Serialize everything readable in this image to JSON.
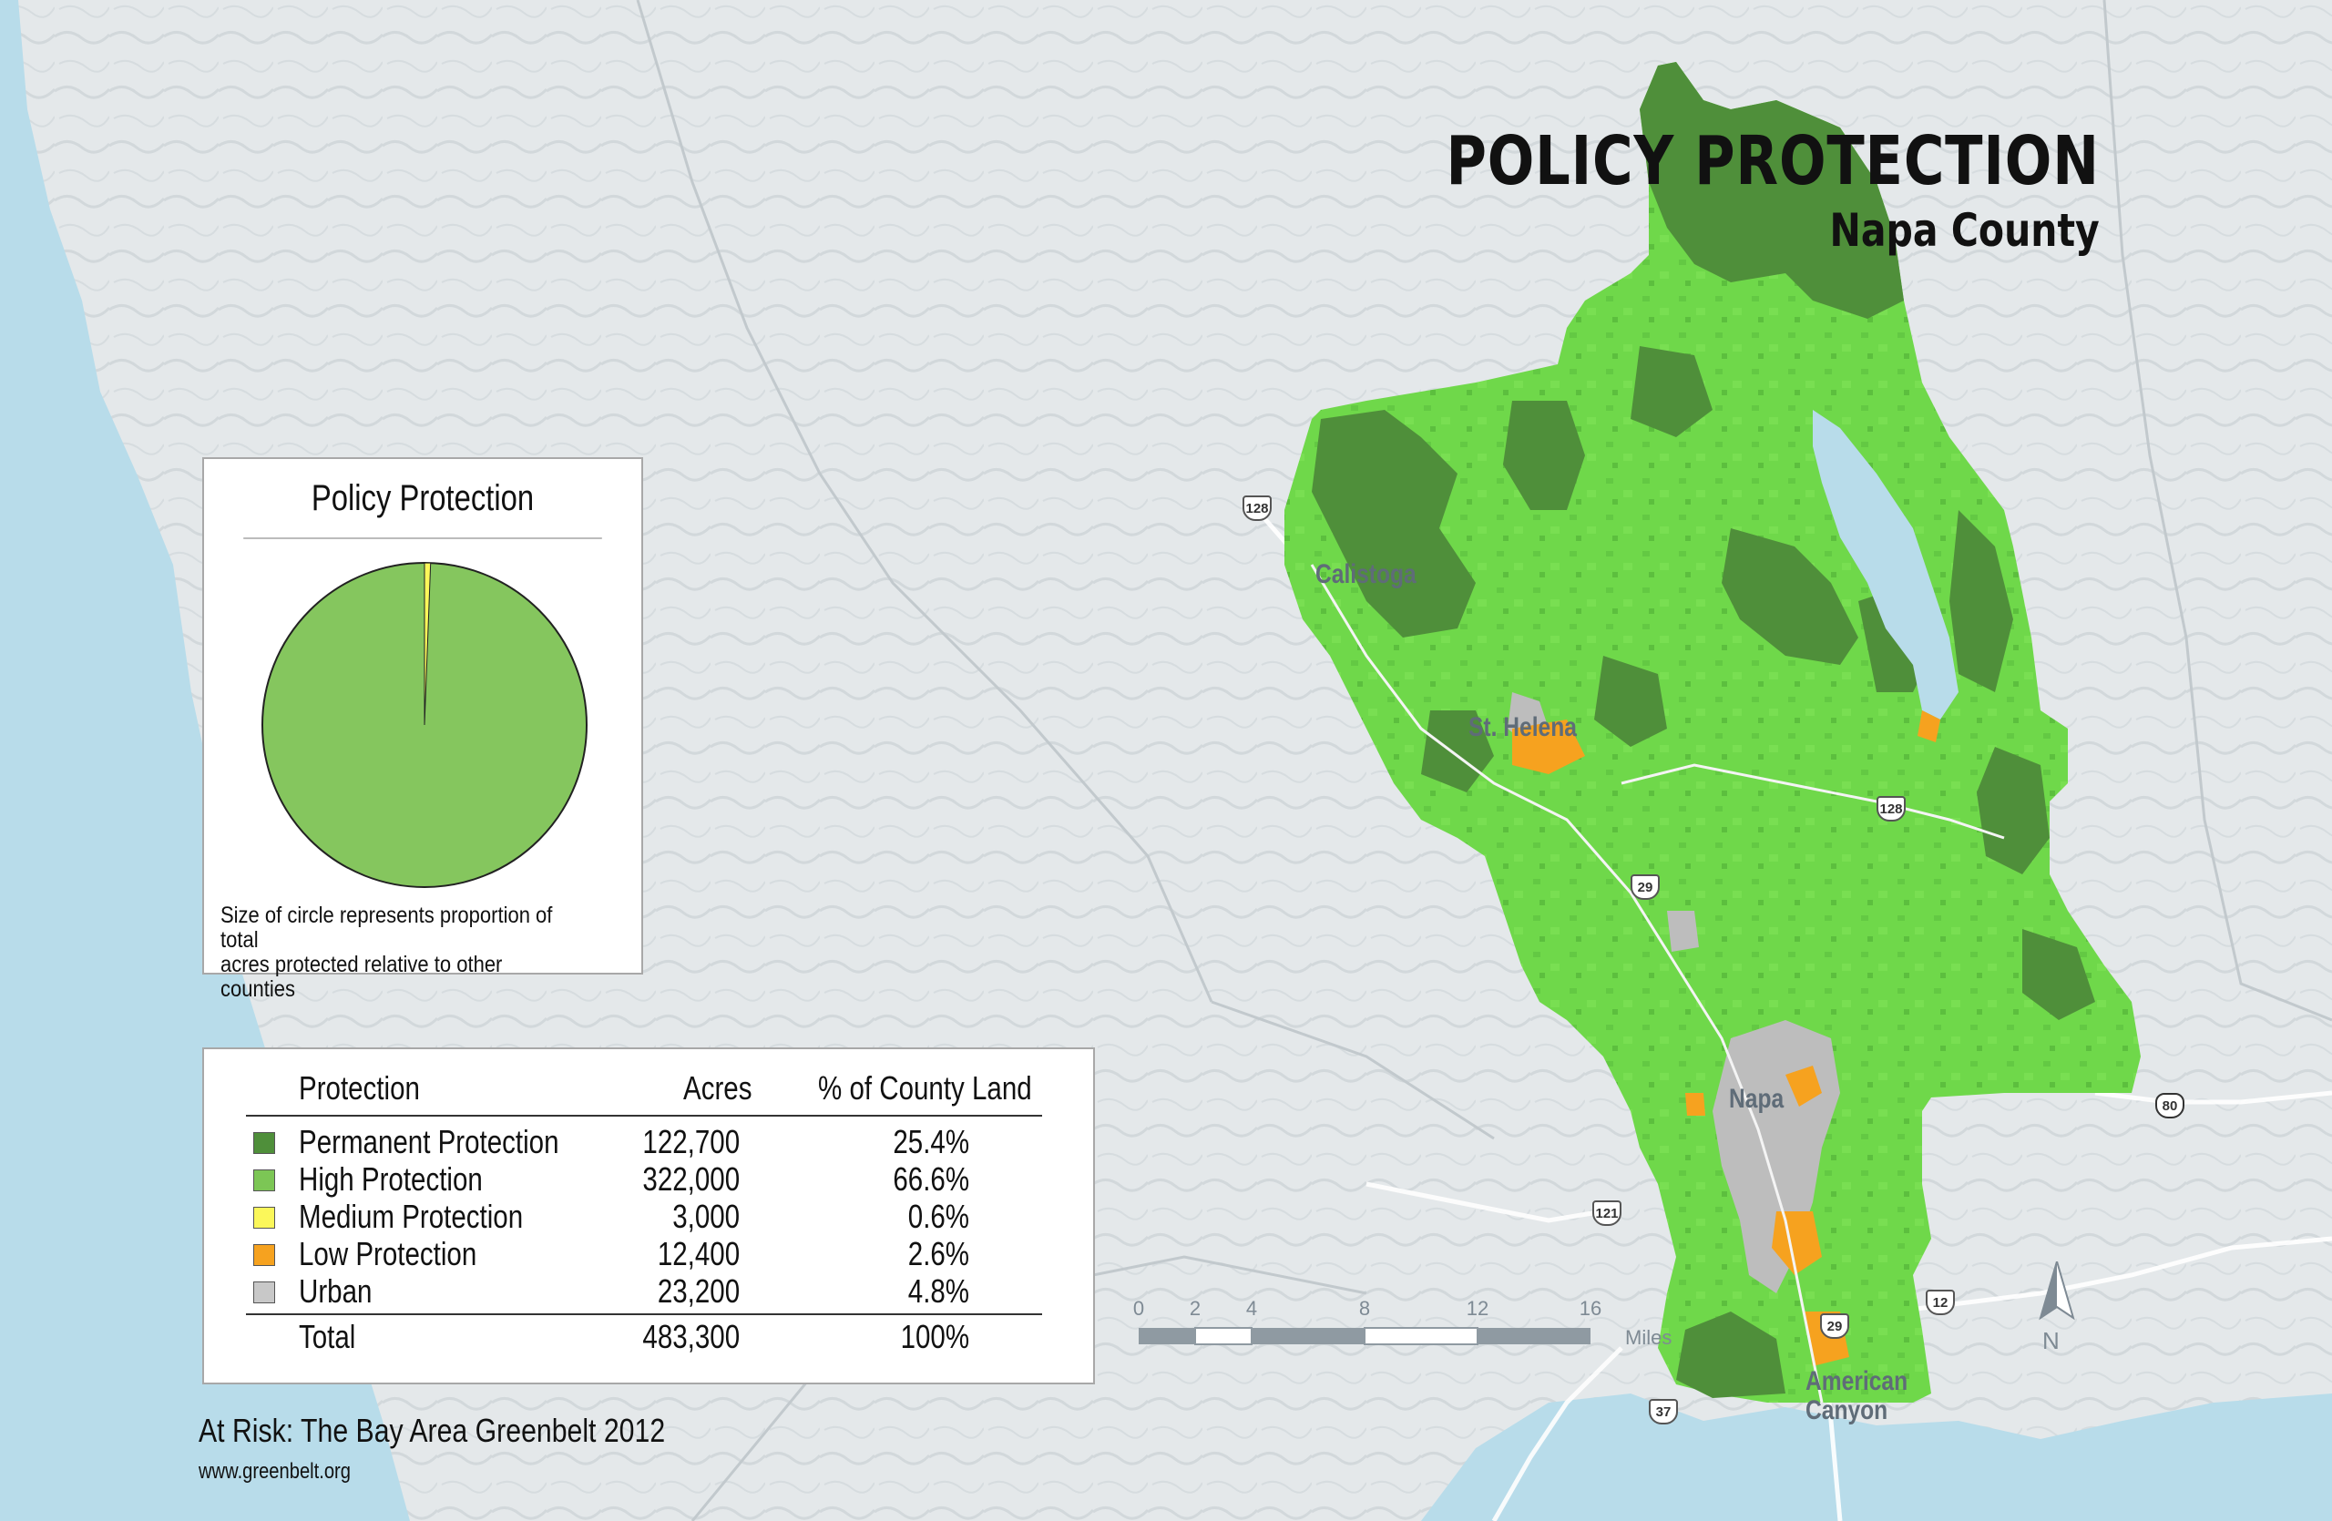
{
  "title": "POLICY PROTECTION",
  "subtitle": "Napa County",
  "colors": {
    "water": "#b8dcea",
    "land": "#e2e6e8",
    "permanent": "#4f8f3a",
    "high": "#6fd84a",
    "medium": "#fbf75a",
    "low": "#f6a21f",
    "urban": "#bdbdbd",
    "pie_high": "#85c65e"
  },
  "pie": {
    "title": "Policy Protection",
    "note_line1": "Size of circle represents proportion of total",
    "note_line2": "acres protected relative to other counties",
    "medium_fraction": 0.006
  },
  "legend": {
    "headers": {
      "protection": "Protection",
      "acres": "Acres",
      "pct": "% of County Land"
    },
    "rows": [
      {
        "label": "Permanent Protection",
        "acres": "122,700",
        "pct": "25.4%",
        "color": "#4f8f3a"
      },
      {
        "label": "High Protection",
        "acres": "322,000",
        "pct": "66.6%",
        "color": "#7cc655"
      },
      {
        "label": "Medium Protection",
        "acres": "3,000",
        "pct": "0.6%",
        "color": "#fbf75a"
      },
      {
        "label": "Low Protection",
        "acres": "12,400",
        "pct": "2.6%",
        "color": "#f6a21f"
      },
      {
        "label": "Urban",
        "acres": "23,200",
        "pct": "4.8%",
        "color": "#c8c8c8"
      }
    ],
    "total": {
      "label": "Total",
      "acres": "483,300",
      "pct": "100%"
    }
  },
  "places": {
    "calistoga": "Calistoga",
    "st_helena": "St. Helena",
    "napa": "Napa",
    "american_canyon_1": "American",
    "american_canyon_2": "Canyon"
  },
  "routes": {
    "r128a": "128",
    "r128b": "128",
    "r29a": "29",
    "r29b": "29",
    "r121": "121",
    "r12": "12",
    "r37": "37",
    "i80": "80"
  },
  "scale": {
    "ticks": [
      "0",
      "2",
      "4",
      "8",
      "12",
      "16"
    ],
    "unit": "Miles"
  },
  "north_label": "N",
  "credit": "At Risk: The Bay Area Greenbelt 2012",
  "url": "www.greenbelt.org"
}
